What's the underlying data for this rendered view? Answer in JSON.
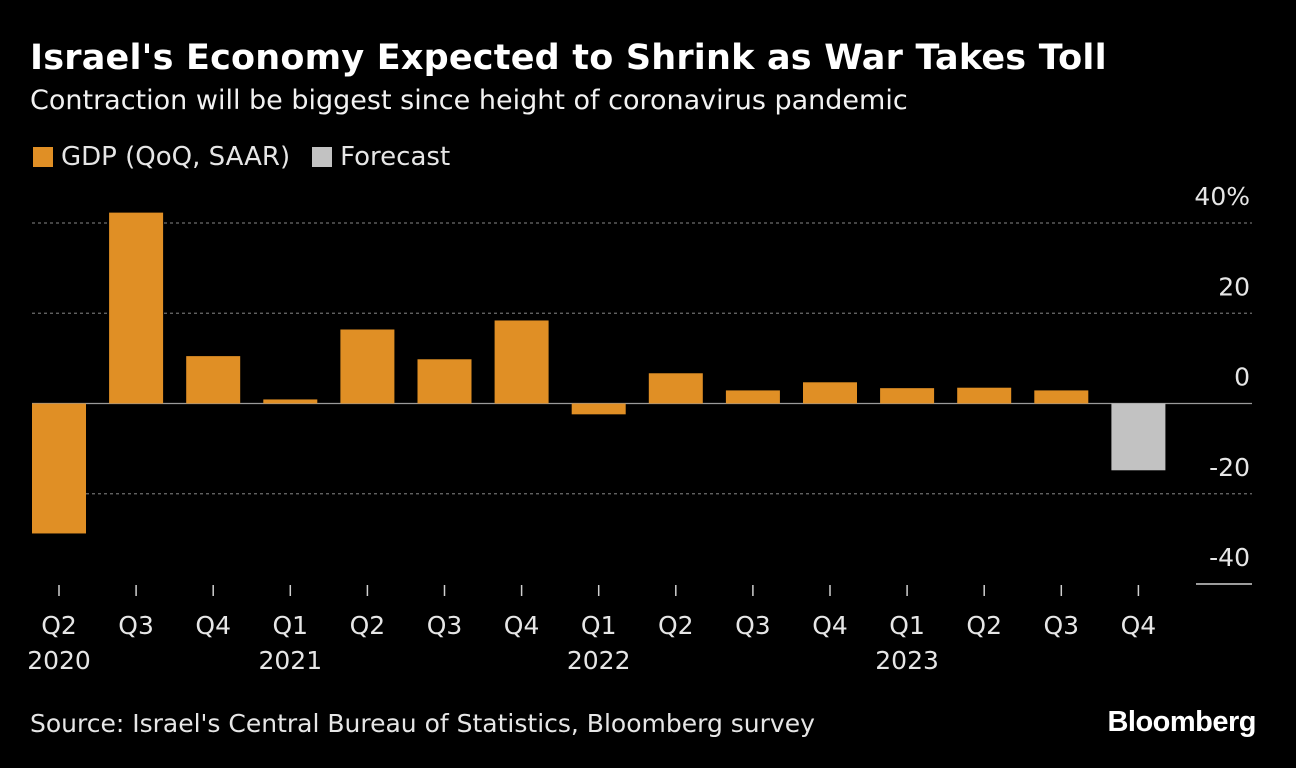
{
  "header": {
    "title": "Israel's Economy Expected to Shrink as War Takes Toll",
    "subtitle": "Contraction will be biggest since height of coronavirus pandemic"
  },
  "legend": [
    {
      "label": "GDP (QoQ, SAAR)",
      "color": "#e08f25"
    },
    {
      "label": "Forecast",
      "color": "#c2c2c2"
    }
  ],
  "footer": {
    "source": "Source: Israel's Central Bureau of Statistics, Bloomberg survey",
    "brand": "Bloomberg"
  },
  "chart_data": {
    "type": "bar",
    "title": "Israel's Economy Expected to Shrink as War Takes Toll",
    "subtitle": "Contraction will be biggest since height of coronavirus pandemic",
    "xlabel": "",
    "ylabel": "",
    "ylim": [
      -40,
      40
    ],
    "yticks": [
      40,
      20,
      0,
      -20,
      -40
    ],
    "ytick_labels": [
      "40%",
      "20",
      "0",
      "-20",
      "-40"
    ],
    "grid": true,
    "categories": [
      "Q2",
      "Q3",
      "Q4",
      "Q1",
      "Q2",
      "Q3",
      "Q4",
      "Q1",
      "Q2",
      "Q3",
      "Q4",
      "Q1",
      "Q2",
      "Q3",
      "Q4"
    ],
    "year_labels": [
      {
        "index": 0,
        "label": "2020"
      },
      {
        "index": 3,
        "label": "2021"
      },
      {
        "index": 7,
        "label": "2022"
      },
      {
        "index": 11,
        "label": "2023"
      }
    ],
    "values": [
      -28.8,
      42.3,
      10.5,
      0.9,
      16.4,
      9.8,
      18.4,
      -2.4,
      6.7,
      2.9,
      4.7,
      3.4,
      3.5,
      2.9,
      -14.8
    ],
    "forecast": [
      false,
      false,
      false,
      false,
      false,
      false,
      false,
      false,
      false,
      false,
      false,
      false,
      false,
      false,
      true
    ],
    "colors": {
      "actual": "#e08f25",
      "forecast": "#c2c2c2",
      "grid": "#6e6e6e",
      "baseline": "#9a9a9a"
    }
  }
}
